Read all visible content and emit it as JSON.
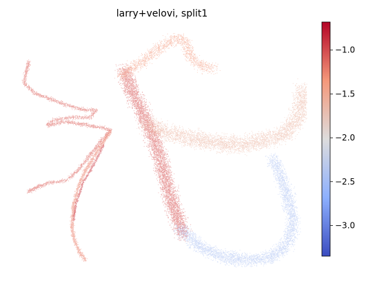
{
  "chart_data": {
    "type": "scatter",
    "title": "larry+velovi, split1",
    "xlabel": "",
    "ylabel": "",
    "axes_visible": false,
    "colormap": "coolwarm",
    "colorbar": {
      "vmin": -3.35,
      "vmax": -0.68,
      "ticks": [
        -3.0,
        -2.5,
        -2.0,
        -1.5,
        -1.0
      ],
      "tick_labels": [
        "−3.0",
        "−2.5",
        "−2.0",
        "−1.5",
        "−1.0"
      ],
      "placement": "right"
    },
    "regions": [
      {
        "name": "upper-left branch",
        "value": -1.1
      },
      {
        "name": "lower-left strand",
        "value": -1.25
      },
      {
        "name": "left curved arm",
        "value": -0.95
      },
      {
        "name": "central diagonal band",
        "value": -1.05
      },
      {
        "name": "top plume",
        "value": -1.35
      },
      {
        "name": "right fan",
        "value": -1.6
      },
      {
        "name": "lower right basin",
        "value": -2.45
      }
    ]
  }
}
